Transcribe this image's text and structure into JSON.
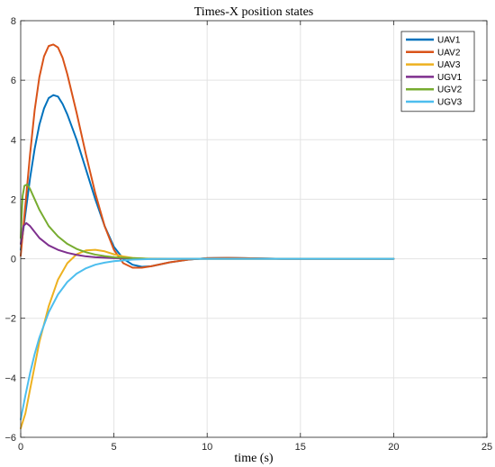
{
  "chart_data": {
    "type": "line",
    "title": "Times-X position states",
    "xlabel": "time (s)",
    "ylabel": "",
    "xlim": [
      0,
      25
    ],
    "ylim": [
      -6,
      8
    ],
    "xticks": [
      0,
      5,
      10,
      15,
      20,
      25
    ],
    "yticks": [
      -6,
      -4,
      -2,
      0,
      2,
      4,
      6,
      8
    ],
    "grid": true,
    "legend_position": "top-right",
    "series": [
      {
        "name": "UAV1",
        "color": "#0072BD",
        "x": [
          0,
          0.25,
          0.5,
          0.75,
          1,
          1.25,
          1.5,
          1.75,
          2,
          2.25,
          2.5,
          3,
          3.5,
          4,
          4.5,
          5,
          5.5,
          6,
          6.5,
          7,
          8,
          9,
          10,
          11,
          12,
          14,
          16,
          18,
          20
        ],
        "y": [
          0.3,
          1.5,
          2.7,
          3.7,
          4.5,
          5.05,
          5.4,
          5.5,
          5.45,
          5.2,
          4.85,
          4.0,
          3.0,
          2.0,
          1.1,
          0.4,
          0.0,
          -0.2,
          -0.27,
          -0.25,
          -0.12,
          -0.03,
          0.02,
          0.03,
          0.02,
          0.0,
          0.0,
          0.0,
          0.0
        ]
      },
      {
        "name": "UAV2",
        "color": "#D95319",
        "x": [
          0,
          0.25,
          0.5,
          0.75,
          1,
          1.25,
          1.5,
          1.75,
          2,
          2.25,
          2.5,
          3,
          3.5,
          4,
          4.5,
          5,
          5.5,
          6,
          6.5,
          7,
          8,
          9,
          10,
          11,
          12,
          14,
          16,
          18,
          20
        ],
        "y": [
          0.1,
          1.8,
          3.5,
          5.0,
          6.1,
          6.8,
          7.15,
          7.2,
          7.1,
          6.75,
          6.2,
          4.9,
          3.5,
          2.2,
          1.1,
          0.3,
          -0.15,
          -0.3,
          -0.3,
          -0.25,
          -0.12,
          -0.03,
          0.02,
          0.03,
          0.02,
          0.0,
          0.0,
          0.0,
          0.0
        ]
      },
      {
        "name": "UAV3",
        "color": "#EDB120",
        "x": [
          0,
          0.25,
          0.5,
          0.75,
          1,
          1.5,
          2,
          2.5,
          3,
          3.5,
          4,
          4.5,
          5,
          5.5,
          6,
          7,
          8,
          9,
          10,
          12,
          14,
          16,
          18,
          20
        ],
        "y": [
          -5.7,
          -5.2,
          -4.4,
          -3.6,
          -2.8,
          -1.6,
          -0.7,
          -0.15,
          0.15,
          0.28,
          0.3,
          0.25,
          0.15,
          0.08,
          0.03,
          -0.01,
          -0.01,
          0.0,
          0.0,
          0.0,
          0.0,
          0.0,
          0.0,
          0.0
        ]
      },
      {
        "name": "UGV1",
        "color": "#7E2F8E",
        "x": [
          0,
          0.15,
          0.3,
          0.5,
          0.75,
          1,
          1.5,
          2,
          2.5,
          3,
          3.5,
          4,
          5,
          6,
          7,
          8,
          10,
          12,
          14,
          16,
          18,
          20
        ],
        "y": [
          0.5,
          1.1,
          1.2,
          1.1,
          0.9,
          0.7,
          0.45,
          0.3,
          0.2,
          0.13,
          0.08,
          0.05,
          0.02,
          0.01,
          0.0,
          0.0,
          0.0,
          0.0,
          0.0,
          0.0,
          0.0,
          0.0
        ]
      },
      {
        "name": "UGV2",
        "color": "#77AC30",
        "x": [
          0,
          0.1,
          0.2,
          0.35,
          0.5,
          0.75,
          1,
          1.5,
          2,
          2.5,
          3,
          3.5,
          4,
          4.5,
          5,
          6,
          7,
          8,
          10,
          12,
          14,
          16,
          18,
          20
        ],
        "y": [
          0.7,
          2.1,
          2.45,
          2.5,
          2.35,
          2.0,
          1.65,
          1.1,
          0.75,
          0.5,
          0.33,
          0.22,
          0.14,
          0.09,
          0.05,
          0.02,
          0.0,
          0.0,
          0.0,
          0.0,
          0.0,
          0.0,
          0.0,
          0.0
        ]
      },
      {
        "name": "UGV3",
        "color": "#4DBEEE",
        "x": [
          0,
          0.25,
          0.5,
          0.75,
          1,
          1.5,
          2,
          2.5,
          3,
          3.5,
          4,
          4.5,
          5,
          6,
          7,
          8,
          10,
          12,
          14,
          16,
          18,
          20
        ],
        "y": [
          -5.4,
          -4.6,
          -3.85,
          -3.2,
          -2.65,
          -1.8,
          -1.2,
          -0.78,
          -0.5,
          -0.32,
          -0.2,
          -0.13,
          -0.08,
          -0.03,
          -0.01,
          0.0,
          0.0,
          0.0,
          0.0,
          0.0,
          0.0,
          0.0
        ]
      }
    ]
  }
}
